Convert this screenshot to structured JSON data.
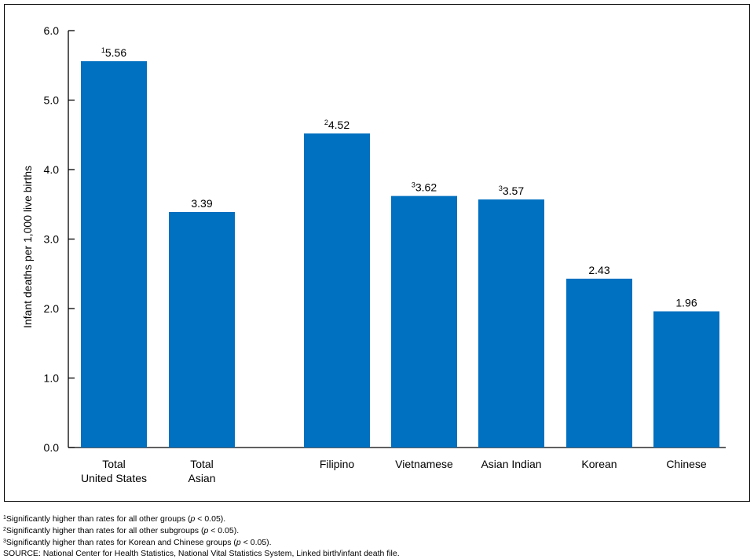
{
  "chart_data": {
    "type": "bar",
    "ylabel": "Infant deaths per 1,000 live births",
    "ylim": [
      0,
      6
    ],
    "yticks": [
      "0.0",
      "1.0",
      "2.0",
      "3.0",
      "4.0",
      "5.0",
      "6.0"
    ],
    "bar_color": "#0070c0",
    "grid": false,
    "categories": [
      {
        "label": [
          "Total",
          "United States"
        ],
        "value": 5.56,
        "value_label": "5.56",
        "note": "1"
      },
      {
        "label": [
          "Total",
          "Asian"
        ],
        "value": 3.39,
        "value_label": "3.39",
        "note": ""
      },
      {
        "label": [
          "Filipino"
        ],
        "value": 4.52,
        "value_label": "4.52",
        "note": "2"
      },
      {
        "label": [
          "Vietnamese"
        ],
        "value": 3.62,
        "value_label": "3.62",
        "note": "3"
      },
      {
        "label": [
          "Asian Indian"
        ],
        "value": 3.57,
        "value_label": "3.57",
        "note": "3"
      },
      {
        "label": [
          "Korean"
        ],
        "value": 2.43,
        "value_label": "2.43",
        "note": ""
      },
      {
        "label": [
          "Chinese"
        ],
        "value": 1.96,
        "value_label": "1.96",
        "note": ""
      }
    ]
  },
  "footnotes": [
    {
      "mark": "1",
      "before": "Significantly higher than rates for all other groups (",
      "p": "p",
      "after": " < 0.05)."
    },
    {
      "mark": "2",
      "before": "Significantly higher than rates for all other subgroups (",
      "p": "p",
      "after": " < 0.05)."
    },
    {
      "mark": "3",
      "before": "Significantly higher than rates for Korean and Chinese groups (",
      "p": "p",
      "after": " < 0.05)."
    }
  ],
  "source": "SOURCE: National Center for Health Statistics, National Vital Statistics System, Linked birth/infant death file."
}
